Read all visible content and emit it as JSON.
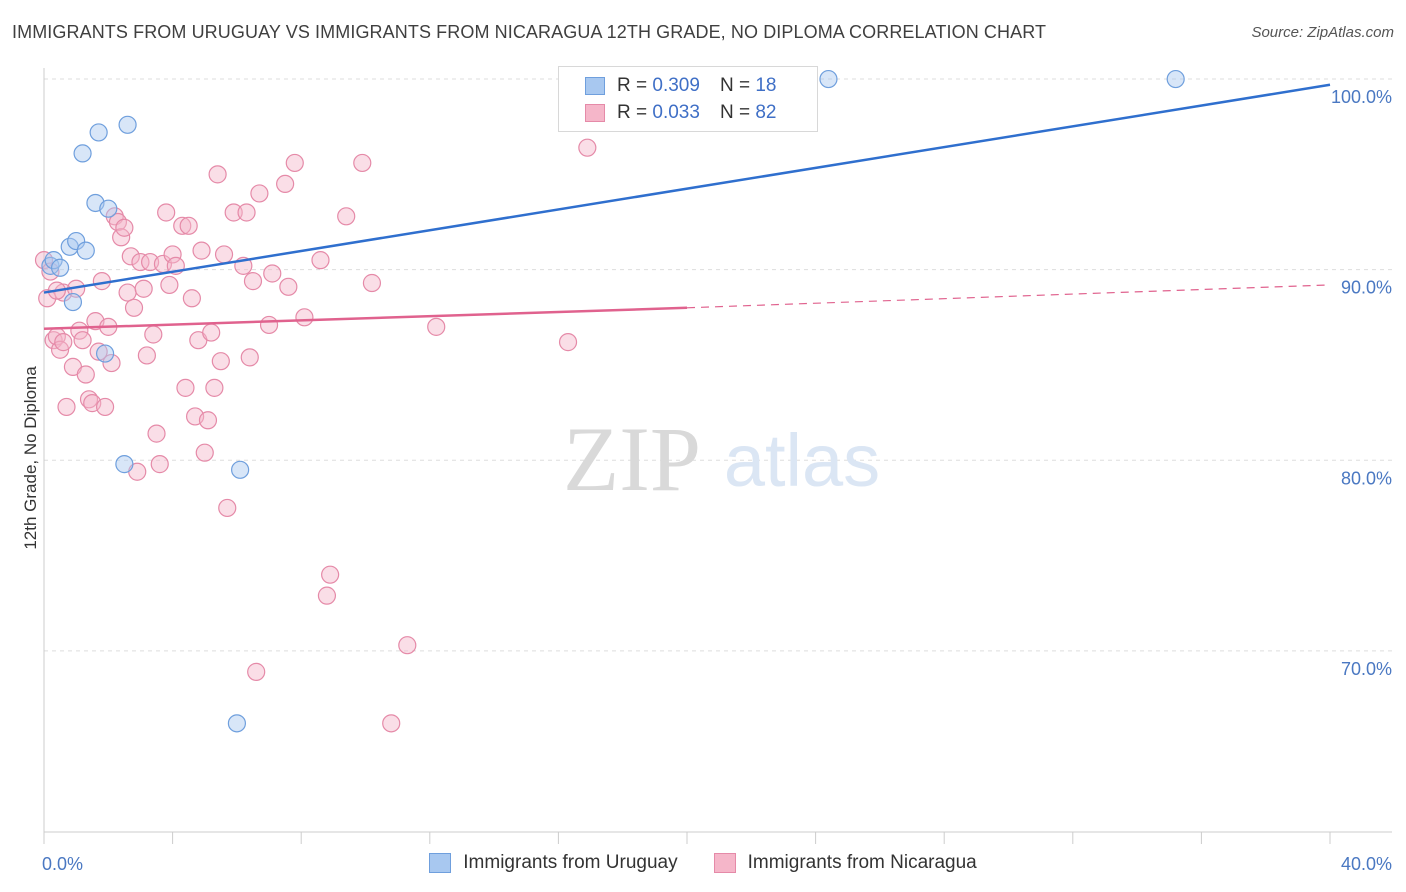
{
  "header": {
    "title": "IMMIGRANTS FROM URUGUAY VS IMMIGRANTS FROM NICARAGUA 12TH GRADE, NO DIPLOMA CORRELATION CHART",
    "source": "Source: ZipAtlas.com"
  },
  "legend": {
    "r_label": "R =",
    "n_label": "N =",
    "uruguay": {
      "r": "0.309",
      "n": "18"
    },
    "nicaragua": {
      "r": "0.033",
      "n": "82"
    }
  },
  "watermark": {
    "zip": "ZIP",
    "atlas": "atlas"
  },
  "colors": {
    "uruguay_fill": "#a8c8f0",
    "uruguay_stroke": "#6f9fdd",
    "uruguay_line": "#2f6fce",
    "nicaragua_fill": "#f5b6c9",
    "nicaragua_stroke": "#e58aa8",
    "nicaragua_line": "#e0628e",
    "axis_text": "#4a78c2",
    "grid": "#dddddd"
  },
  "chart_data": {
    "type": "scatter",
    "title": "IMMIGRANTS FROM URUGUAY VS IMMIGRANTS FROM NICARAGUA 12TH GRADE, NO DIPLOMA CORRELATION CHART",
    "xlabel": "",
    "ylabel": "12th Grade, No Diploma",
    "xlim": [
      0,
      40
    ],
    "ylim": [
      60.5,
      101
    ],
    "x_tick_labels": [
      "0.0%",
      "40.0%"
    ],
    "y_ticks": [
      70,
      80,
      90,
      100
    ],
    "y_tick_labels": [
      "70.0%",
      "80.0%",
      "90.0%",
      "100.0%"
    ],
    "grid": true,
    "legend_position": "top-center",
    "series": [
      {
        "name": "Immigrants from Uruguay",
        "points": [
          [
            0.2,
            90.2
          ],
          [
            0.3,
            90.5
          ],
          [
            0.5,
            90.1
          ],
          [
            0.8,
            91.2
          ],
          [
            1.0,
            91.5
          ],
          [
            1.3,
            91.0
          ],
          [
            0.9,
            88.3
          ],
          [
            1.2,
            96.1
          ],
          [
            1.7,
            97.2
          ],
          [
            2.6,
            97.6
          ],
          [
            1.6,
            93.5
          ],
          [
            2.0,
            93.2
          ],
          [
            1.9,
            85.6
          ],
          [
            2.5,
            79.8
          ],
          [
            6.1,
            79.5
          ],
          [
            6.0,
            66.2
          ],
          [
            24.4,
            100.0
          ],
          [
            35.2,
            100.0
          ]
        ],
        "trend": {
          "x": [
            0,
            40
          ],
          "y": [
            88.8,
            99.7
          ],
          "style": "solid"
        }
      },
      {
        "name": "Immigrants from Nicaragua",
        "points": [
          [
            0.1,
            88.5
          ],
          [
            0.3,
            86.3
          ],
          [
            0.4,
            86.5
          ],
          [
            0.5,
            85.8
          ],
          [
            0.6,
            88.8
          ],
          [
            0.7,
            82.8
          ],
          [
            0.9,
            84.9
          ],
          [
            1.0,
            89.0
          ],
          [
            1.1,
            86.8
          ],
          [
            1.2,
            86.3
          ],
          [
            1.3,
            84.5
          ],
          [
            1.4,
            83.2
          ],
          [
            1.5,
            83.0
          ],
          [
            1.6,
            87.3
          ],
          [
            1.7,
            85.7
          ],
          [
            1.8,
            89.4
          ],
          [
            1.9,
            82.8
          ],
          [
            2.0,
            87.0
          ],
          [
            2.1,
            85.1
          ],
          [
            2.2,
            92.8
          ],
          [
            2.3,
            92.5
          ],
          [
            2.4,
            91.7
          ],
          [
            2.5,
            92.2
          ],
          [
            2.6,
            88.8
          ],
          [
            2.7,
            90.7
          ],
          [
            2.8,
            88.0
          ],
          [
            2.9,
            79.4
          ],
          [
            3.0,
            90.4
          ],
          [
            3.1,
            89.0
          ],
          [
            3.2,
            85.5
          ],
          [
            3.3,
            90.4
          ],
          [
            3.4,
            86.6
          ],
          [
            3.5,
            81.4
          ],
          [
            3.6,
            79.8
          ],
          [
            3.7,
            90.3
          ],
          [
            3.8,
            93.0
          ],
          [
            3.9,
            89.2
          ],
          [
            4.0,
            90.8
          ],
          [
            4.1,
            90.2
          ],
          [
            4.3,
            92.3
          ],
          [
            4.4,
            83.8
          ],
          [
            4.5,
            92.3
          ],
          [
            4.6,
            88.5
          ],
          [
            4.7,
            82.3
          ],
          [
            4.8,
            86.3
          ],
          [
            4.9,
            91.0
          ],
          [
            5.0,
            80.4
          ],
          [
            5.1,
            82.1
          ],
          [
            5.2,
            86.7
          ],
          [
            5.3,
            83.8
          ],
          [
            5.4,
            95.0
          ],
          [
            5.5,
            85.2
          ],
          [
            5.6,
            90.8
          ],
          [
            5.7,
            77.5
          ],
          [
            5.9,
            93.0
          ],
          [
            6.2,
            90.2
          ],
          [
            6.3,
            93.0
          ],
          [
            6.4,
            85.4
          ],
          [
            6.5,
            89.4
          ],
          [
            6.6,
            68.9
          ],
          [
            6.7,
            94.0
          ],
          [
            7.0,
            87.1
          ],
          [
            7.1,
            89.8
          ],
          [
            7.5,
            94.5
          ],
          [
            7.6,
            89.1
          ],
          [
            7.8,
            95.6
          ],
          [
            8.1,
            87.5
          ],
          [
            8.6,
            90.5
          ],
          [
            8.9,
            74.0
          ],
          [
            8.8,
            72.9
          ],
          [
            9.4,
            92.8
          ],
          [
            9.9,
            95.6
          ],
          [
            10.2,
            89.3
          ],
          [
            10.8,
            66.2
          ],
          [
            11.3,
            70.3
          ],
          [
            12.2,
            87.0
          ],
          [
            16.3,
            86.2
          ],
          [
            16.9,
            96.4
          ],
          [
            0.0,
            90.5
          ],
          [
            0.2,
            89.9
          ],
          [
            0.4,
            88.9
          ],
          [
            0.6,
            86.2
          ]
        ],
        "trend": {
          "x": [
            0,
            20
          ],
          "y": [
            86.9,
            88.0
          ],
          "style": "solid",
          "extension": {
            "x": [
              20,
              40
            ],
            "y": [
              88.0,
              89.2
            ],
            "style": "dashed"
          }
        }
      }
    ]
  },
  "bottom_legend": {
    "uruguay_label": "Immigrants from Uruguay",
    "nicaragua_label": "Immigrants from Nicaragua"
  }
}
